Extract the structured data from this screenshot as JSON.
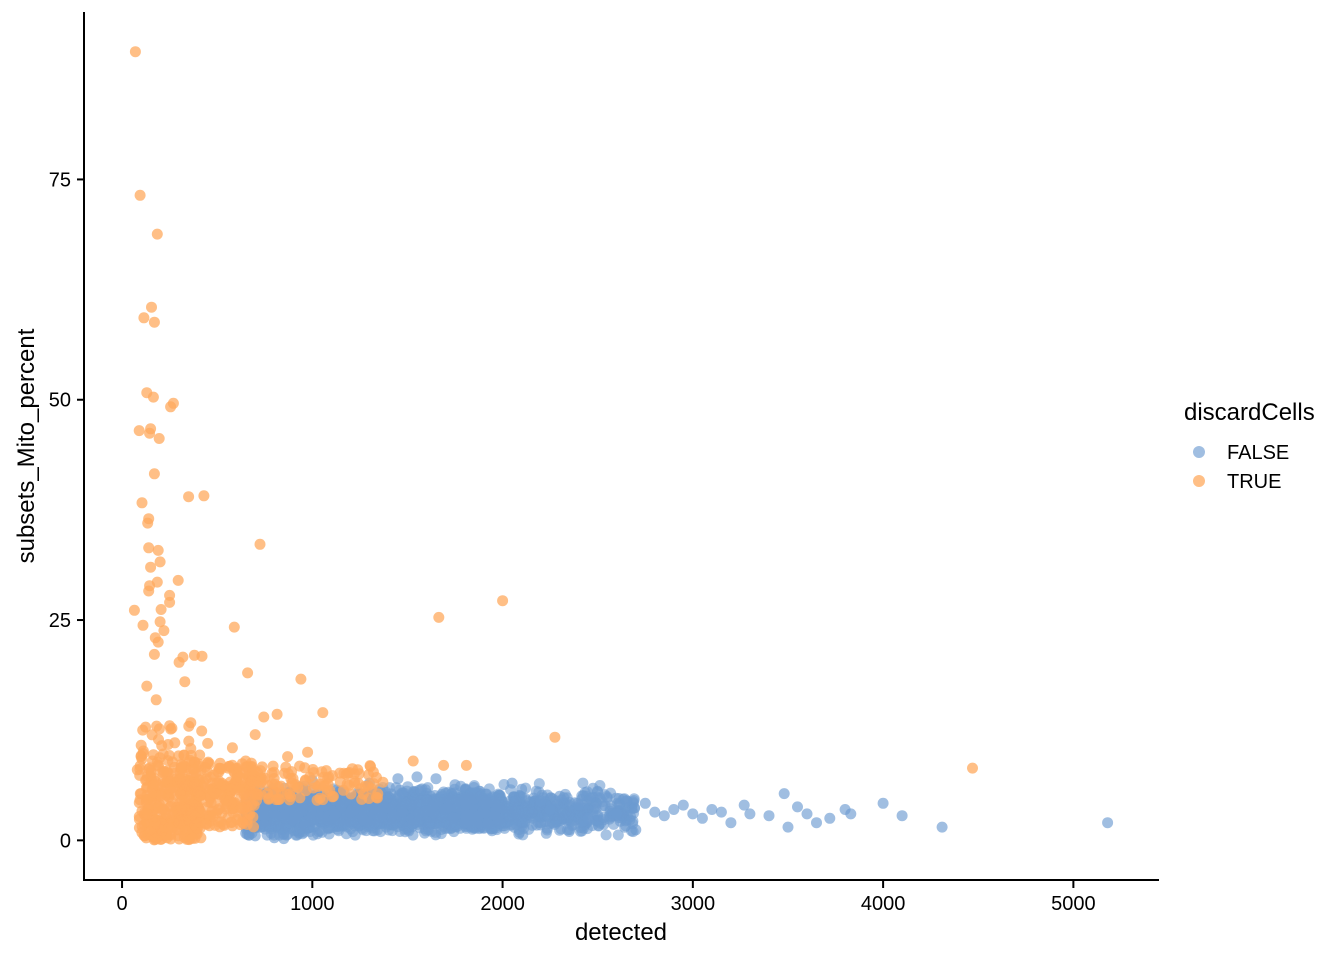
{
  "chart_data": {
    "type": "scatter",
    "xlabel": "detected",
    "ylabel": "subsets_Mito_percent",
    "xlim": [
      -200,
      5450
    ],
    "ylim": [
      -4.5,
      94
    ],
    "x_ticks": [
      0,
      1000,
      2000,
      3000,
      4000,
      5000
    ],
    "x_tick_labels": [
      "0",
      "1000",
      "2000",
      "3000",
      "4000",
      "5000"
    ],
    "y_ticks": [
      0,
      25,
      50,
      75
    ],
    "y_tick_labels": [
      "0",
      "25",
      "50",
      "75"
    ],
    "grid": false,
    "legend": {
      "title": "discardCells",
      "placement": "right",
      "entries": [
        "FALSE",
        "TRUE"
      ]
    },
    "series": [
      {
        "name": "FALSE",
        "color": "#6d9bd1",
        "points": [
          [
            5180,
            2.0
          ],
          [
            4310,
            1.5
          ],
          [
            4100,
            2.8
          ],
          [
            4000,
            4.2
          ],
          [
            3830,
            3.0
          ],
          [
            3800,
            3.5
          ],
          [
            3720,
            2.5
          ],
          [
            3650,
            2.0
          ],
          [
            3600,
            3.0
          ],
          [
            3550,
            3.8
          ],
          [
            3500,
            1.5
          ],
          [
            3480,
            5.3
          ],
          [
            3400,
            2.8
          ],
          [
            3300,
            3.0
          ],
          [
            3270,
            4.0
          ],
          [
            3200,
            2.0
          ],
          [
            3150,
            3.2
          ],
          [
            3100,
            3.5
          ],
          [
            3050,
            2.5
          ],
          [
            3000,
            3.0
          ],
          [
            2950,
            4.0
          ],
          [
            2900,
            3.5
          ],
          [
            2850,
            2.8
          ],
          [
            2800,
            3.2
          ],
          [
            2750,
            4.2
          ],
          [
            2700,
            1.2
          ],
          [
            2650,
            4.5
          ],
          [
            2600,
            3.0
          ],
          [
            2550,
            4.8
          ],
          [
            2500,
            5.5
          ],
          [
            2450,
            2.5
          ],
          [
            2400,
            4.0
          ],
          [
            2350,
            1.0
          ],
          [
            2300,
            5.0
          ],
          [
            2250,
            3.5
          ],
          [
            2200,
            4.5
          ],
          [
            2100,
            5.8
          ],
          [
            2050,
            6.5
          ],
          [
            1850,
            6.0
          ],
          [
            1750,
            6.3
          ],
          [
            1650,
            7.0
          ],
          [
            1550,
            7.2
          ],
          [
            1450,
            7.0
          ],
          [
            1300,
            6.5
          ],
          [
            1000,
            6.8
          ],
          [
            700,
            0.5
          ],
          [
            800,
            0.3
          ],
          [
            850,
            0.2
          ],
          [
            650,
            0.8
          ]
        ],
        "dense_region": {
          "x_min": 650,
          "x_max": 2300,
          "y_min": 0.6,
          "y_max": 6.5,
          "count": 2400
        }
      },
      {
        "name": "TRUE",
        "color": "#ffaa5e",
        "points": [
          [
            70,
            89.5
          ],
          [
            95,
            73.2
          ],
          [
            185,
            68.8
          ],
          [
            155,
            60.5
          ],
          [
            115,
            59.3
          ],
          [
            170,
            58.8
          ],
          [
            130,
            50.8
          ],
          [
            165,
            50.3
          ],
          [
            270,
            49.6
          ],
          [
            255,
            49.2
          ],
          [
            90,
            46.5
          ],
          [
            150,
            46.7
          ],
          [
            145,
            46.2
          ],
          [
            195,
            45.6
          ],
          [
            170,
            41.6
          ],
          [
            350,
            39.0
          ],
          [
            430,
            39.1
          ],
          [
            105,
            38.3
          ],
          [
            140,
            36.5
          ],
          [
            135,
            36.0
          ],
          [
            725,
            33.6
          ],
          [
            140,
            33.2
          ],
          [
            190,
            32.9
          ],
          [
            200,
            31.6
          ],
          [
            150,
            31.0
          ],
          [
            295,
            29.5
          ],
          [
            185,
            29.3
          ],
          [
            145,
            28.9
          ],
          [
            140,
            28.3
          ],
          [
            250,
            27.8
          ],
          [
            250,
            27.0
          ],
          [
            2000,
            27.2
          ],
          [
            65,
            26.1
          ],
          [
            205,
            26.2
          ],
          [
            1665,
            25.3
          ],
          [
            110,
            24.4
          ],
          [
            200,
            24.8
          ],
          [
            590,
            24.2
          ],
          [
            220,
            23.8
          ],
          [
            175,
            23.0
          ],
          [
            190,
            22.5
          ],
          [
            380,
            21.0
          ],
          [
            420,
            20.9
          ],
          [
            320,
            20.8
          ],
          [
            300,
            20.2
          ],
          [
            170,
            21.1
          ],
          [
            660,
            19.0
          ],
          [
            940,
            18.3
          ],
          [
            330,
            18.0
          ],
          [
            130,
            17.5
          ],
          [
            1055,
            14.5
          ],
          [
            815,
            14.3
          ],
          [
            745,
            14.0
          ],
          [
            700,
            12.0
          ],
          [
            2275,
            11.7
          ],
          [
            4470,
            8.2
          ],
          [
            1690,
            8.5
          ],
          [
            1810,
            8.5
          ],
          [
            975,
            10.0
          ],
          [
            870,
            9.5
          ],
          [
            1530,
            9.0
          ],
          [
            650,
            9.0
          ],
          [
            580,
            10.5
          ],
          [
            450,
            11.0
          ],
          [
            250,
            13.0
          ],
          [
            160,
            9.0
          ],
          [
            100,
            9.5
          ],
          [
            80,
            8.0
          ],
          [
            130,
            3.0
          ],
          [
            150,
            1.0
          ],
          [
            180,
            0.2
          ],
          [
            300,
            2.0
          ],
          [
            400,
            5.5
          ],
          [
            500,
            6.5
          ],
          [
            550,
            4.5
          ]
        ],
        "dense_region": {
          "x_min": 90,
          "x_max": 1400,
          "y_min": 0,
          "y_max": 18,
          "count": 650
        }
      }
    ]
  }
}
